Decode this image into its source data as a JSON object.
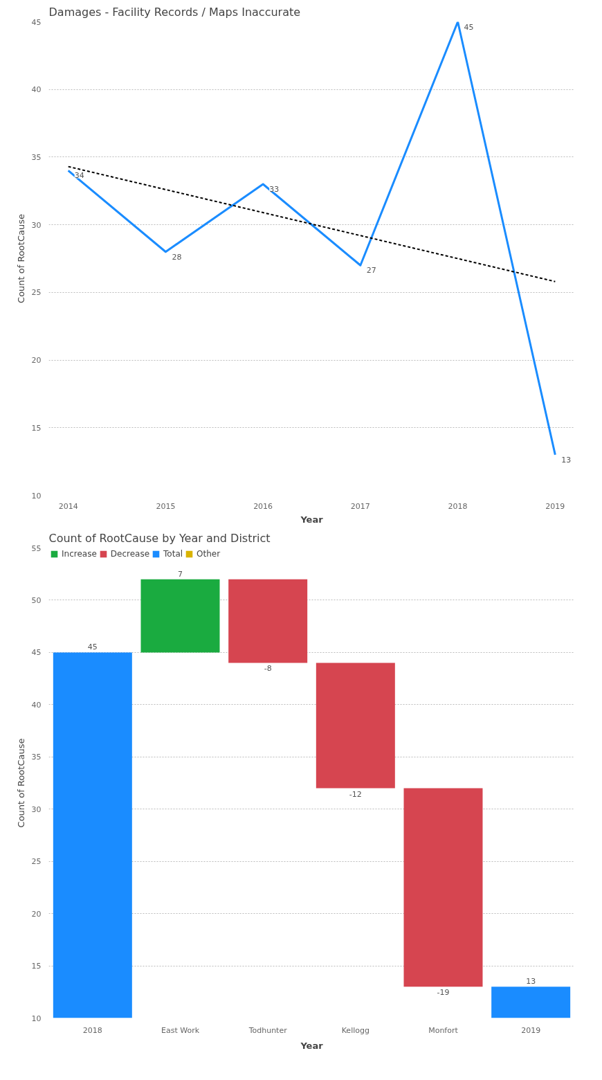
{
  "chart_data": [
    {
      "type": "line",
      "title": "Damages - Facility Records / Maps Inaccurate",
      "xlabel": "Year",
      "ylabel": "Count of RootCause",
      "xlim": [
        2013.8,
        2019.2
      ],
      "xticks": [
        2014,
        2015,
        2016,
        2017,
        2018,
        2019
      ],
      "ylim": [
        10,
        45
      ],
      "yticks": [
        10,
        15,
        20,
        25,
        30,
        35,
        40,
        45
      ],
      "grid": "y",
      "marker": "none",
      "series": [
        {
          "color": "#1a8cff",
          "x": [
            2014,
            2015,
            2016,
            2017,
            2018,
            2019
          ],
          "values": [
            34,
            28,
            33,
            27,
            45,
            13
          ],
          "value_labels": [
            "34",
            "28",
            "33",
            "27",
            "45",
            "13"
          ],
          "line_style": "solid"
        },
        {
          "color": "#000000",
          "x": [
            2014,
            2019
          ],
          "values": [
            34.3,
            25.8
          ],
          "line_style": "dashed"
        }
      ]
    },
    {
      "type": "bar",
      "title": "Count of RootCause by Year and District",
      "xlabel": "Year",
      "ylabel": "Count of RootCause",
      "categories": [
        "2018",
        "East Work",
        "Todhunter",
        "Kellogg",
        "Monfort",
        "2019"
      ],
      "ylim": [
        10,
        55
      ],
      "yticks": [
        10,
        15,
        20,
        25,
        30,
        35,
        40,
        45,
        50,
        55
      ],
      "grid": "y",
      "legend": "top left",
      "data_labels": true,
      "series": [
        {
          "name": "Increase",
          "color": "#1aab40",
          "values": [
            null,
            7,
            null,
            null,
            null,
            null
          ],
          "base": [
            null,
            45,
            null,
            null,
            null,
            null
          ]
        },
        {
          "name": "Decrease",
          "color": "#d64550",
          "values": [
            null,
            null,
            -8,
            -12,
            -19,
            null
          ],
          "base": [
            null,
            null,
            52,
            44,
            32,
            null
          ]
        },
        {
          "name": "Total",
          "color": "#1a8cff",
          "values": [
            45,
            null,
            null,
            null,
            null,
            13
          ],
          "base": [
            0,
            null,
            null,
            null,
            null,
            0
          ]
        },
        {
          "name": "Other",
          "color": "#d9b300",
          "values": [
            null,
            null,
            null,
            null,
            null,
            null
          ]
        }
      ]
    }
  ]
}
